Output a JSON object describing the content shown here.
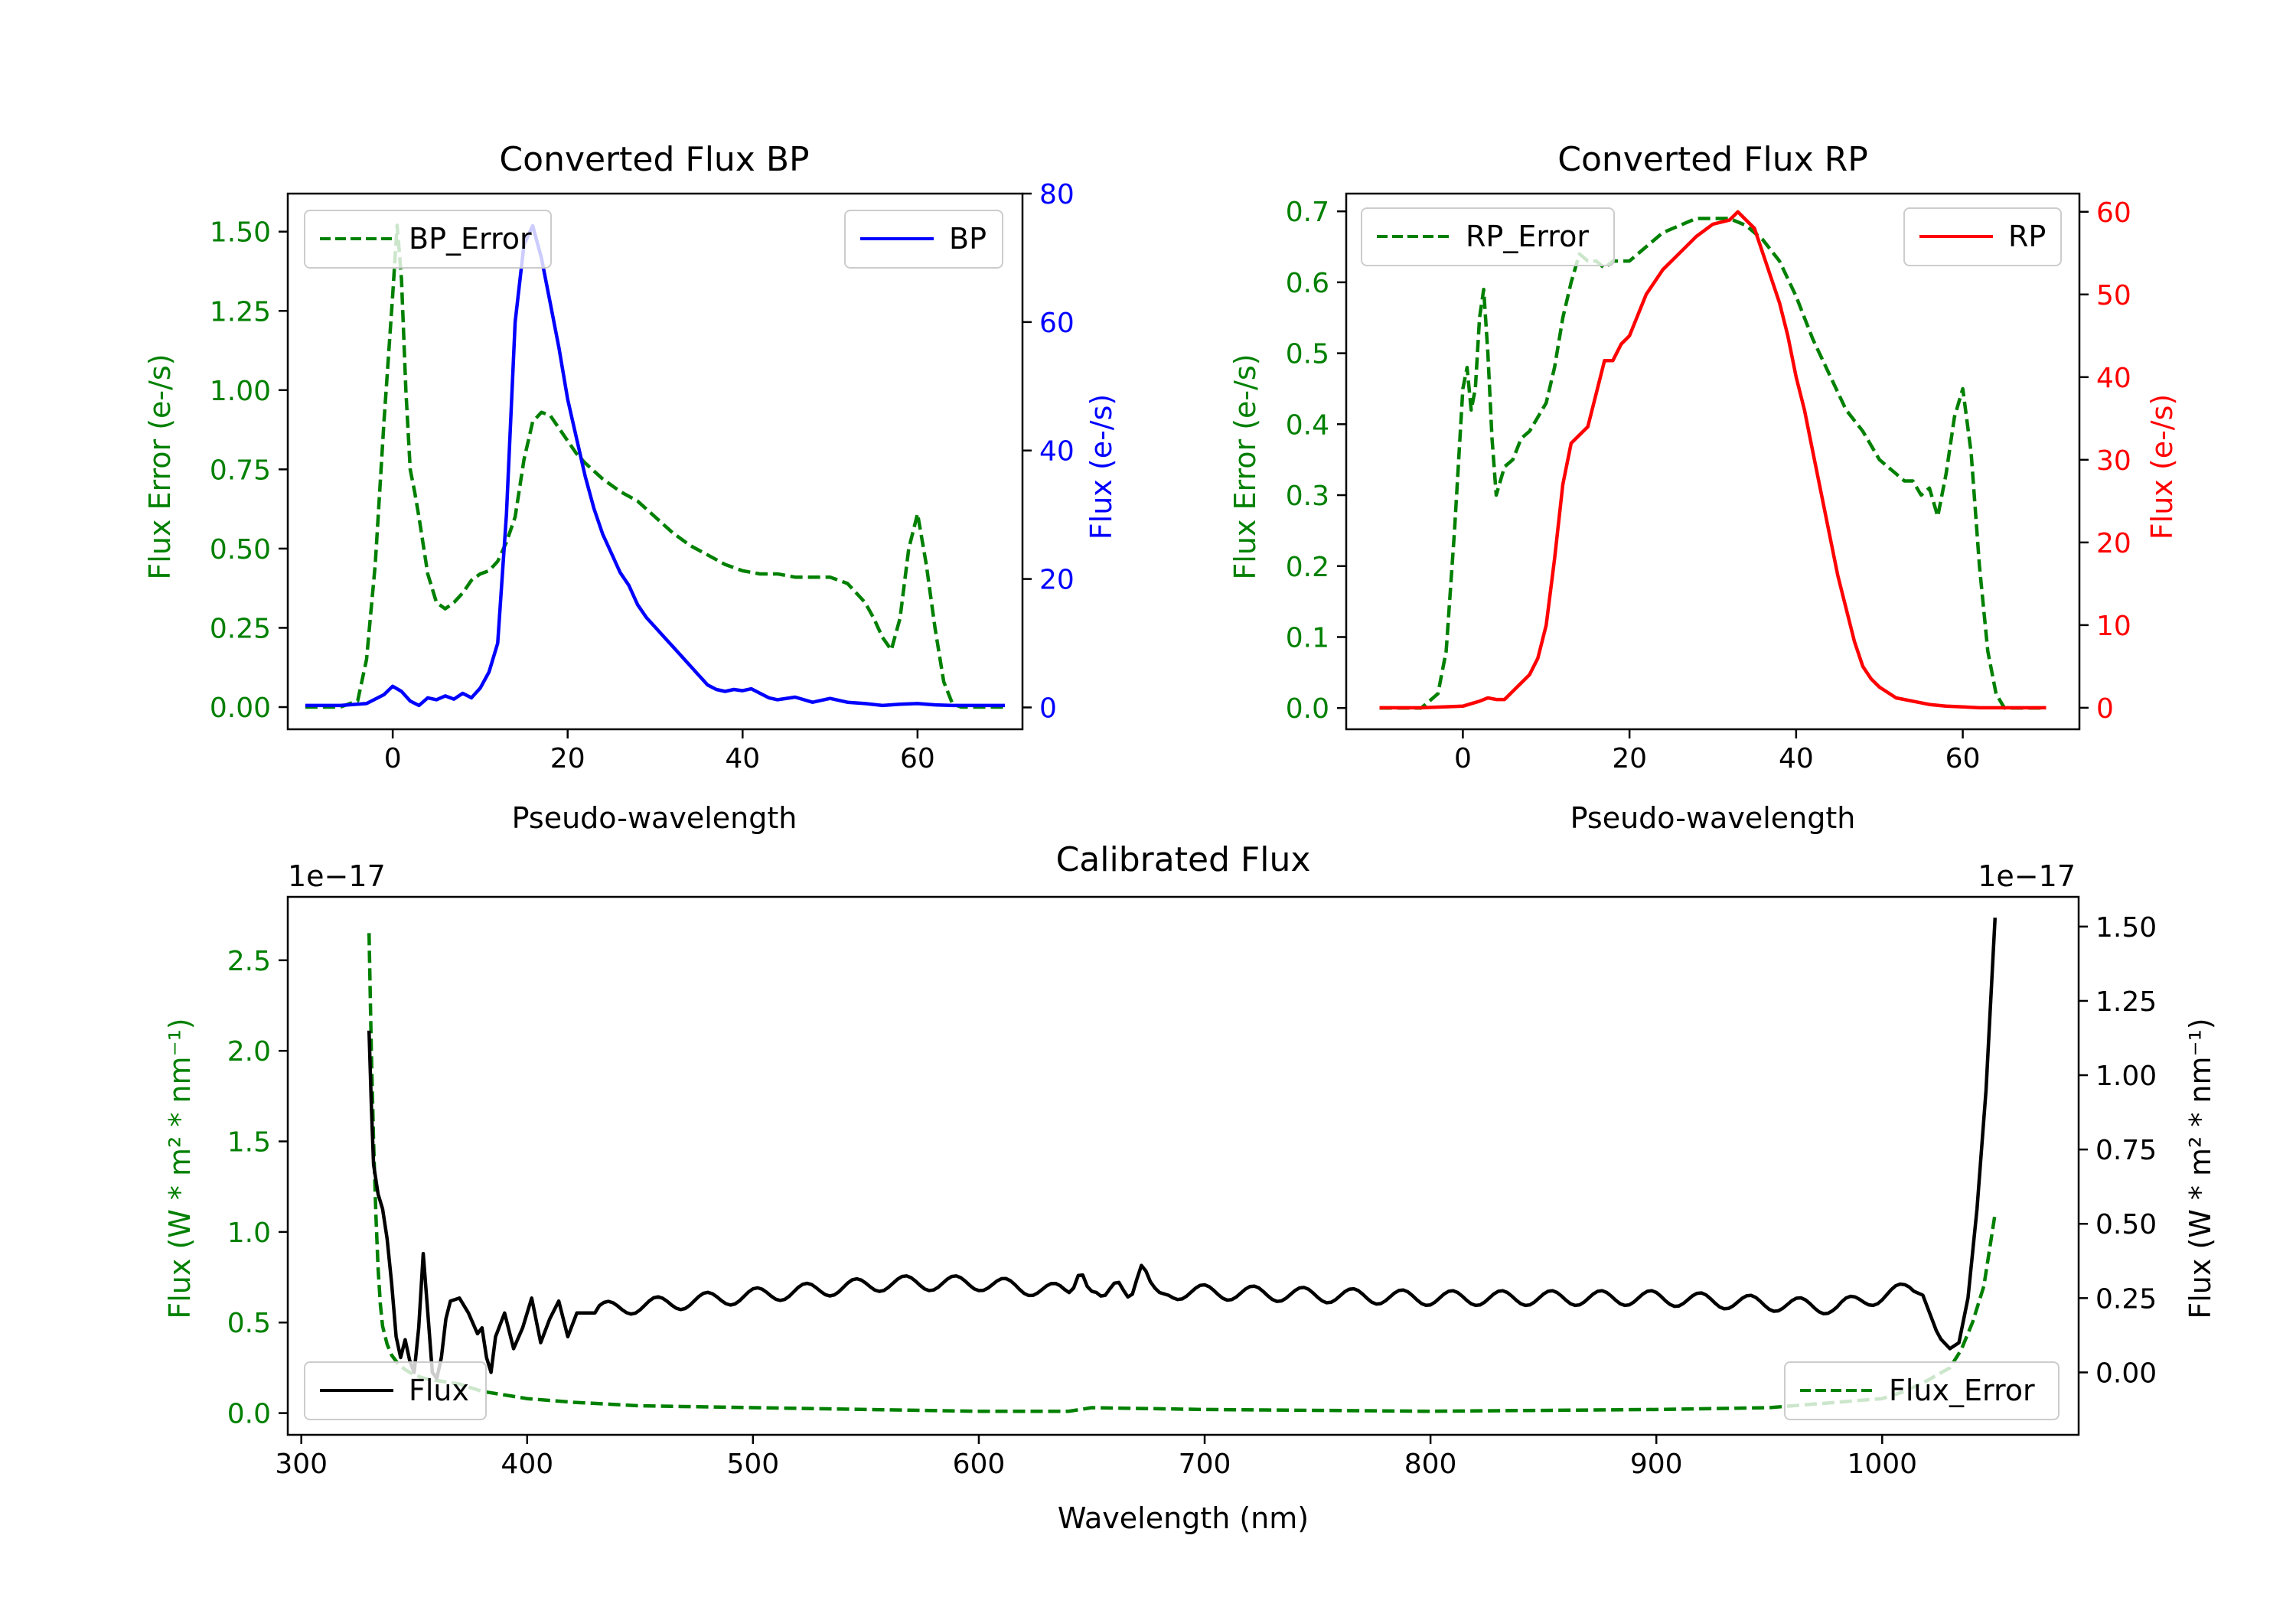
{
  "chart_data": [
    {
      "id": "bp",
      "type": "line",
      "title": "Converted Flux BP",
      "xlabel": "Pseudo-wavelength",
      "ylabel_left": "Flux Error (e-/s)",
      "ylabel_right": "Flux (e-/s)",
      "xlim": [
        -12,
        72
      ],
      "ylim_left": [
        -0.07,
        1.62
      ],
      "ylim_right": [
        -3.4,
        80
      ],
      "xticks": [
        "0",
        "20",
        "40",
        "60"
      ],
      "yticks_left": [
        "0.00",
        "0.25",
        "0.50",
        "0.75",
        "1.00",
        "1.25",
        "1.50"
      ],
      "yticks_right": [
        "0",
        "20",
        "40",
        "60",
        "80"
      ],
      "legend_left": "top-left",
      "legend_right": "top-right",
      "colors": {
        "left": "#008000",
        "right": "#0000ff"
      },
      "series": [
        {
          "name": "BP_Error",
          "axis": "left",
          "style": "dashed",
          "color": "#008000",
          "x": [
            -10,
            -6,
            -4,
            -3,
            -2,
            -1,
            0,
            0.5,
            1,
            1.5,
            2,
            2.5,
            3,
            4,
            5,
            6,
            7,
            8,
            9,
            10,
            11,
            12,
            13,
            14,
            15,
            16,
            17,
            18,
            19,
            20,
            21,
            22,
            24,
            26,
            28,
            30,
            32,
            34,
            36,
            38,
            40,
            42,
            44,
            46,
            48,
            50,
            52,
            54,
            55,
            56,
            57,
            58,
            59,
            60,
            61,
            62,
            63,
            64,
            65,
            66,
            68,
            70
          ],
          "y": [
            0.0,
            0.0,
            0.02,
            0.15,
            0.45,
            0.9,
            1.3,
            1.52,
            1.35,
            1.0,
            0.75,
            0.68,
            0.6,
            0.42,
            0.33,
            0.31,
            0.33,
            0.36,
            0.4,
            0.42,
            0.43,
            0.46,
            0.52,
            0.6,
            0.78,
            0.9,
            0.93,
            0.92,
            0.88,
            0.84,
            0.8,
            0.77,
            0.72,
            0.68,
            0.65,
            0.6,
            0.55,
            0.51,
            0.48,
            0.45,
            0.43,
            0.42,
            0.42,
            0.41,
            0.41,
            0.41,
            0.39,
            0.33,
            0.28,
            0.22,
            0.18,
            0.28,
            0.5,
            0.61,
            0.45,
            0.25,
            0.08,
            0.01,
            0.0,
            0.0,
            0.0,
            0.0
          ]
        },
        {
          "name": "BP",
          "axis": "right",
          "style": "solid",
          "color": "#0000ff",
          "x": [
            -10,
            -6,
            -3,
            -1,
            0,
            1,
            2,
            3,
            4,
            5,
            6,
            7,
            8,
            9,
            10,
            11,
            12,
            13,
            14,
            15,
            16,
            17,
            18,
            19,
            20,
            21,
            22,
            23,
            24,
            25,
            26,
            27,
            28,
            29,
            30,
            31,
            32,
            33,
            34,
            35,
            36,
            37,
            38,
            39,
            40,
            41,
            42,
            43,
            44,
            46,
            48,
            50,
            52,
            54,
            56,
            58,
            60,
            62,
            64,
            66,
            68,
            70
          ],
          "y": [
            0.3,
            0.3,
            0.6,
            2.0,
            3.3,
            2.5,
            1.0,
            0.3,
            1.5,
            1.2,
            1.8,
            1.3,
            2.2,
            1.5,
            3.0,
            5.5,
            10,
            30,
            60,
            72,
            75,
            70,
            63,
            56,
            48,
            42,
            36,
            31,
            27,
            24,
            21,
            19,
            16,
            14,
            12.5,
            11,
            9.5,
            8,
            6.5,
            5,
            3.5,
            2.8,
            2.5,
            2.8,
            2.6,
            2.9,
            2.2,
            1.5,
            1.2,
            1.6,
            0.8,
            1.4,
            0.8,
            0.6,
            0.3,
            0.5,
            0.6,
            0.4,
            0.3,
            0.3,
            0.3,
            0.3
          ]
        }
      ]
    },
    {
      "id": "rp",
      "type": "line",
      "title": "Converted Flux RP",
      "xlabel": "Pseudo-wavelength",
      "ylabel_left": "Flux Error (e-/s)",
      "ylabel_right": "Flux (e-/s)",
      "xlim": [
        -14,
        74
      ],
      "ylim_left": [
        -0.03,
        0.725
      ],
      "ylim_right": [
        -2.6,
        62.2
      ],
      "xticks": [
        "0",
        "20",
        "40",
        "60"
      ],
      "yticks_left": [
        "0.0",
        "0.1",
        "0.2",
        "0.3",
        "0.4",
        "0.5",
        "0.6",
        "0.7"
      ],
      "yticks_right": [
        "0",
        "10",
        "20",
        "30",
        "40",
        "50",
        "60"
      ],
      "legend_left": "top-left",
      "legend_right": "top-right",
      "colors": {
        "left": "#008000",
        "right": "#ff0000"
      },
      "series": [
        {
          "name": "RP_Error",
          "axis": "left",
          "style": "dashed",
          "color": "#008000",
          "x": [
            -10,
            -5,
            -3,
            -2,
            -1,
            0,
            0.5,
            1,
            1.5,
            2,
            2.5,
            3,
            3.5,
            4,
            5,
            6,
            7,
            8,
            9,
            10,
            11,
            12,
            13,
            14,
            15,
            16,
            17,
            18,
            19,
            20,
            22,
            24,
            26,
            28,
            30,
            32,
            34,
            36,
            38,
            40,
            42,
            44,
            46,
            48,
            50,
            52,
            53,
            54,
            55,
            56,
            57,
            58,
            59,
            60,
            61,
            62,
            63,
            64,
            65,
            68,
            70
          ],
          "y": [
            0.0,
            0.0,
            0.02,
            0.08,
            0.25,
            0.45,
            0.48,
            0.42,
            0.45,
            0.55,
            0.59,
            0.5,
            0.38,
            0.3,
            0.34,
            0.35,
            0.38,
            0.39,
            0.41,
            0.43,
            0.48,
            0.55,
            0.6,
            0.64,
            0.63,
            0.63,
            0.62,
            0.63,
            0.63,
            0.63,
            0.65,
            0.67,
            0.68,
            0.69,
            0.69,
            0.69,
            0.68,
            0.66,
            0.63,
            0.58,
            0.52,
            0.47,
            0.42,
            0.39,
            0.35,
            0.33,
            0.32,
            0.32,
            0.3,
            0.31,
            0.27,
            0.33,
            0.41,
            0.45,
            0.36,
            0.2,
            0.08,
            0.02,
            0.0,
            0.0,
            0.0
          ]
        },
        {
          "name": "RP",
          "axis": "right",
          "style": "solid",
          "color": "#ff0000",
          "x": [
            -10,
            -5,
            0,
            2,
            3,
            4,
            5,
            6,
            7,
            8,
            9,
            10,
            11,
            12,
            13,
            14,
            15,
            16,
            17,
            18,
            19,
            20,
            22,
            24,
            26,
            28,
            30,
            32,
            33,
            34,
            35,
            36,
            37,
            38,
            39,
            40,
            41,
            42,
            43,
            44,
            45,
            46,
            47,
            48,
            49,
            50,
            52,
            54,
            56,
            58,
            60,
            62,
            65,
            70
          ],
          "y": [
            0,
            0,
            0.2,
            0.8,
            1.2,
            1.0,
            1.0,
            2.0,
            3.0,
            4.0,
            6.0,
            10,
            18,
            27,
            32,
            33,
            34,
            38,
            42,
            42,
            44,
            45,
            50,
            53,
            55,
            57,
            58.5,
            59,
            60,
            59,
            58,
            55,
            52,
            49,
            45,
            40,
            36,
            31,
            26,
            21,
            16,
            12,
            8,
            5,
            3.5,
            2.5,
            1.2,
            0.8,
            0.4,
            0.2,
            0.1,
            0.0,
            0.0,
            0.0
          ]
        }
      ]
    },
    {
      "id": "cal",
      "type": "line",
      "title": "Calibrated Flux",
      "xlabel": "Wavelength (nm)",
      "ylabel_left": "Flux (W * m² * nm⁻¹)",
      "ylabel_right": "Flux (W * m² * nm⁻¹)",
      "offset_left": "1e−17",
      "offset_right": "1e−17",
      "xlim": [
        294,
        1087
      ],
      "ylim_left": [
        -0.12,
        2.85
      ],
      "ylim_right": [
        -0.21,
        1.6
      ],
      "xticks": [
        "300",
        "400",
        "500",
        "600",
        "700",
        "800",
        "900",
        "1000"
      ],
      "yticks_left": [
        "0.0",
        "0.5",
        "1.0",
        "1.5",
        "2.0",
        "2.5"
      ],
      "yticks_right": [
        "0.00",
        "0.25",
        "0.50",
        "0.75",
        "1.00",
        "1.25",
        "1.50"
      ],
      "legend_left": "bottom-left",
      "legend_right": "bottom-right",
      "colors": {
        "left": "#008000",
        "right": "#000000"
      },
      "series": [
        {
          "name": "Flux_Error",
          "axis": "left",
          "style": "dashed",
          "color": "#008000",
          "x": [
            330,
            331,
            332,
            333,
            334,
            335,
            336,
            338,
            340,
            343,
            346,
            350,
            355,
            360,
            370,
            380,
            390,
            400,
            420,
            450,
            500,
            550,
            600,
            640,
            650,
            700,
            800,
            900,
            950,
            1000,
            1010,
            1020,
            1030,
            1035,
            1040,
            1045,
            1050
          ],
          "y": [
            2.65,
            2.0,
            1.5,
            1.1,
            0.8,
            0.6,
            0.48,
            0.38,
            0.32,
            0.27,
            0.24,
            0.21,
            0.19,
            0.18,
            0.16,
            0.12,
            0.1,
            0.08,
            0.06,
            0.04,
            0.03,
            0.02,
            0.01,
            0.01,
            0.03,
            0.02,
            0.01,
            0.02,
            0.03,
            0.08,
            0.12,
            0.18,
            0.25,
            0.35,
            0.5,
            0.7,
            1.1
          ]
        },
        {
          "name": "Flux",
          "axis": "right",
          "style": "solid",
          "color": "#000000",
          "fn": {
            "samples": [
              [
                330,
                1.15
              ],
              [
                331,
                0.9
              ],
              [
                332,
                0.7
              ],
              [
                334,
                0.6
              ],
              [
                336,
                0.55
              ],
              [
                338,
                0.45
              ],
              [
                340,
                0.3
              ],
              [
                342,
                0.12
              ],
              [
                344,
                0.05
              ],
              [
                346,
                0.11
              ],
              [
                348,
                0.04
              ],
              [
                350,
                0.0
              ],
              [
                352,
                0.15
              ],
              [
                354,
                0.4
              ],
              [
                356,
                0.2
              ],
              [
                358,
                0.0
              ],
              [
                360,
                -0.02
              ],
              [
                362,
                0.05
              ],
              [
                364,
                0.18
              ],
              [
                366,
                0.24
              ],
              [
                370,
                0.25
              ],
              [
                374,
                0.2
              ],
              [
                378,
                0.13
              ],
              [
                380,
                0.15
              ],
              [
                382,
                0.05
              ],
              [
                384,
                0.0
              ],
              [
                386,
                0.12
              ],
              [
                390,
                0.2
              ],
              [
                394,
                0.08
              ],
              [
                398,
                0.15
              ],
              [
                402,
                0.25
              ],
              [
                406,
                0.1
              ],
              [
                410,
                0.18
              ],
              [
                414,
                0.24
              ],
              [
                418,
                0.12
              ],
              [
                422,
                0.2
              ],
              [
                430,
                0.2
              ]
            ],
            "base": [
              [
                430,
                0.21
              ],
              [
                560,
                0.3
              ],
              [
                600,
                0.3
              ],
              [
                640,
                0.27
              ],
              [
                700,
                0.27
              ],
              [
                800,
                0.25
              ],
              [
                900,
                0.25
              ],
              [
                980,
                0.22
              ],
              [
                1012,
                0.28
              ],
              [
                1018,
                0.26
              ],
              [
                1025,
                0.12
              ],
              [
                1030,
                0.08
              ],
              [
                1034,
                0.1
              ],
              [
                1038,
                0.25
              ],
              [
                1042,
                0.55
              ],
              [
                1046,
                0.95
              ],
              [
                1050,
                1.53
              ]
            ],
            "wiggle_start": 430,
            "wiggle_end": 1012,
            "wiggle_period": 22,
            "wiggle_amp": 0.025,
            "spikes": [
              [
                645,
                0.09
              ],
              [
                655,
                -0.04
              ],
              [
                662,
                0.04
              ],
              [
                672,
                0.09
              ],
              [
                680,
                -0.02
              ]
            ]
          }
        }
      ]
    }
  ]
}
